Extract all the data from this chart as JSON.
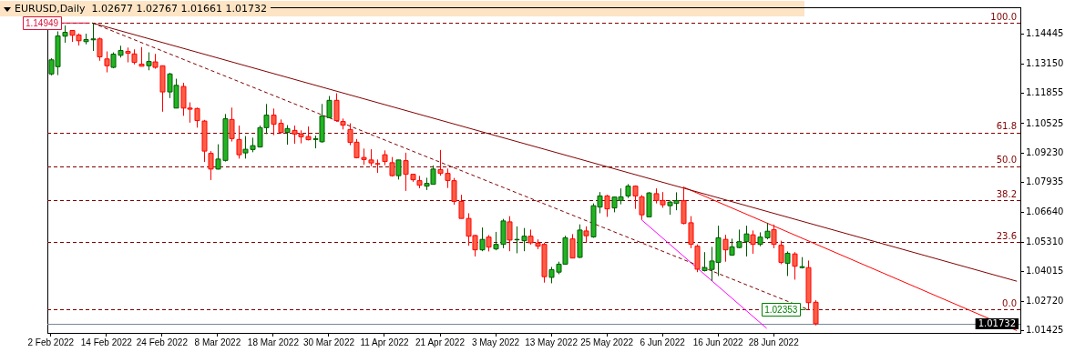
{
  "chart_data": {
    "type": "candlestick",
    "title": "EURUSD,Daily  1.02677 1.02767 1.01661 1.01732",
    "categories": [
      "2 Feb 2022",
      null,
      null,
      null,
      null,
      null,
      null,
      null,
      "14 Feb 2022",
      null,
      null,
      null,
      null,
      null,
      null,
      null,
      "24 Feb 2022",
      null,
      null,
      null,
      null,
      null,
      null,
      null,
      "8 Mar 2022",
      null,
      null,
      null,
      null,
      null,
      null,
      null,
      "18 Mar 2022",
      null,
      null,
      null,
      null,
      null,
      null,
      null,
      "30 Mar 2022",
      null,
      null,
      null,
      null,
      null,
      null,
      null,
      "11 Apr 2022",
      null,
      null,
      null,
      null,
      null,
      null,
      null,
      "21 Apr 2022",
      null,
      null,
      null,
      null,
      null,
      null,
      null,
      "3 May 2022",
      null,
      null,
      null,
      null,
      null,
      null,
      null,
      "13 May 2022",
      null,
      null,
      null,
      null,
      null,
      null,
      null,
      "25 May 2022",
      null,
      null,
      null,
      null,
      null,
      null,
      null,
      "6 Jun 2022",
      null,
      null,
      null,
      null,
      null,
      null,
      null,
      "16 Jun 2022",
      null,
      null,
      null,
      null,
      null,
      null,
      null,
      "28 Jun 2022",
      null,
      null,
      null,
      null,
      null,
      null,
      null,
      null,
      null,
      null,
      null,
      null,
      null,
      null,
      null,
      null,
      null,
      null,
      null,
      null,
      null,
      null,
      null,
      null,
      null,
      null,
      null,
      null,
      null,
      null,
      null,
      null,
      null,
      null,
      null
    ],
    "ohlc": [
      [
        1.1271,
        1.134,
        1.1265,
        1.1333
      ],
      [
        1.1303,
        1.1458,
        1.1266,
        1.1438
      ],
      [
        1.1437,
        1.1484,
        1.1408,
        1.1454
      ],
      [
        1.1462,
        1.1464,
        1.1412,
        1.1441
      ],
      [
        1.1442,
        1.1449,
        1.1396,
        1.1417
      ],
      [
        1.1413,
        1.1448,
        1.1401,
        1.1422
      ],
      [
        1.1421,
        1.14949,
        1.1372,
        1.1425
      ],
      [
        1.1425,
        1.1431,
        1.1329,
        1.1346
      ],
      [
        1.1337,
        1.137,
        1.1278,
        1.1307
      ],
      [
        1.13,
        1.1366,
        1.1296,
        1.1358
      ],
      [
        1.1353,
        1.1395,
        1.1343,
        1.1374
      ],
      [
        1.137,
        1.1387,
        1.1322,
        1.1362
      ],
      [
        1.1359,
        1.1379,
        1.1313,
        1.1322
      ],
      [
        1.1314,
        1.1389,
        1.1304,
        1.1305
      ],
      [
        1.1307,
        1.1366,
        1.1287,
        1.1326
      ],
      [
        1.1324,
        1.1359,
        1.1294,
        1.13
      ],
      [
        1.1307,
        1.1307,
        1.1105,
        1.1192
      ],
      [
        1.1192,
        1.1276,
        1.1165,
        1.1271
      ],
      [
        1.1121,
        1.125,
        1.1121,
        1.1221
      ],
      [
        1.1216,
        1.1232,
        1.1087,
        1.1121
      ],
      [
        1.1121,
        1.1146,
        1.1057,
        1.1116
      ],
      [
        1.1119,
        1.1123,
        1.1035,
        1.1066
      ],
      [
        1.1064,
        1.1069,
        1.0884,
        1.0932
      ],
      [
        1.0922,
        1.0932,
        1.0805,
        1.0853
      ],
      [
        1.0853,
        1.0962,
        1.0851,
        1.0897
      ],
      [
        1.0891,
        1.1095,
        1.0886,
        1.1074
      ],
      [
        1.1071,
        1.1123,
        1.0974,
        1.0987
      ],
      [
        1.0983,
        1.1044,
        1.0899,
        1.0916
      ],
      [
        1.0924,
        1.0998,
        1.0899,
        1.094
      ],
      [
        1.0939,
        1.0991,
        1.0927,
        1.0956
      ],
      [
        1.095,
        1.1044,
        1.0948,
        1.1035
      ],
      [
        1.1035,
        1.1139,
        1.1007,
        1.109
      ],
      [
        1.109,
        1.1119,
        1.1002,
        1.105
      ],
      [
        1.1054,
        1.1071,
        1.101,
        1.1014
      ],
      [
        1.1014,
        1.1046,
        1.096,
        1.1031
      ],
      [
        1.1023,
        1.1044,
        1.0964,
        1.1007
      ],
      [
        1.1007,
        1.1023,
        1.0966,
        1.0995
      ],
      [
        1.0996,
        1.104,
        1.0979,
        1.0982
      ],
      [
        1.0983,
        1.1,
        1.0944,
        1.0986
      ],
      [
        1.0973,
        1.1139,
        1.0969,
        1.1086
      ],
      [
        1.1079,
        1.1174,
        1.1077,
        1.1155
      ],
      [
        1.1155,
        1.1186,
        1.1061,
        1.1066
      ],
      [
        1.1062,
        1.1075,
        1.1027,
        1.1046
      ],
      [
        1.1027,
        1.1054,
        1.0958,
        1.097
      ],
      [
        1.0971,
        1.0985,
        1.09,
        1.0903
      ],
      [
        1.0904,
        1.0943,
        1.0872,
        1.0895
      ],
      [
        1.0893,
        1.094,
        1.0866,
        1.088
      ],
      [
        1.0877,
        1.0895,
        1.0836,
        1.0876
      ],
      [
        1.0916,
        1.0935,
        1.087,
        1.0886
      ],
      [
        1.0881,
        1.0906,
        1.082,
        1.0824
      ],
      [
        1.0824,
        1.0893,
        1.0807,
        1.0893
      ],
      [
        1.089,
        1.0925,
        1.0757,
        1.083
      ],
      [
        1.083,
        1.0832,
        1.0797,
        1.0806
      ],
      [
        1.0802,
        1.0823,
        1.0769,
        1.0782
      ],
      [
        1.0778,
        1.0815,
        1.0761,
        1.079
      ],
      [
        1.0786,
        1.0869,
        1.0786,
        1.0853
      ],
      [
        1.0851,
        1.0937,
        1.0824,
        1.0834
      ],
      [
        1.0834,
        1.0855,
        1.077,
        1.0803
      ],
      [
        1.0802,
        1.0814,
        1.0696,
        1.0711
      ],
      [
        1.0711,
        1.074,
        1.0636,
        1.0636
      ],
      [
        1.0636,
        1.0659,
        1.0516,
        1.0558
      ],
      [
        1.0561,
        1.0564,
        1.0469,
        1.0498
      ],
      [
        1.0498,
        1.0596,
        1.0492,
        1.0544
      ],
      [
        1.0554,
        1.0563,
        1.0491,
        1.051
      ],
      [
        1.0502,
        1.0577,
        1.0496,
        1.0522
      ],
      [
        1.0522,
        1.0634,
        1.0505,
        1.0625
      ],
      [
        1.0621,
        1.0646,
        1.0492,
        1.0541
      ],
      [
        1.0542,
        1.0601,
        1.0483,
        1.0544
      ],
      [
        1.0538,
        1.0594,
        1.0492,
        1.0558
      ],
      [
        1.0558,
        1.0587,
        1.0521,
        1.0529
      ],
      [
        1.0528,
        1.0544,
        1.0501,
        1.0514
      ],
      [
        1.0522,
        1.0529,
        1.0354,
        1.038
      ],
      [
        1.0377,
        1.0423,
        1.0351,
        1.0411
      ],
      [
        1.04,
        1.0446,
        1.0391,
        1.0435
      ],
      [
        1.0435,
        1.056,
        1.0433,
        1.0551
      ],
      [
        1.0546,
        1.0567,
        1.0462,
        1.0462
      ],
      [
        1.0465,
        1.061,
        1.0462,
        1.0585
      ],
      [
        1.0581,
        1.0601,
        1.0531,
        1.056
      ],
      [
        1.0555,
        1.0702,
        1.0551,
        1.0692
      ],
      [
        1.0686,
        1.0752,
        1.0659,
        1.0735
      ],
      [
        1.0735,
        1.074,
        1.0643,
        1.0678
      ],
      [
        1.0682,
        1.0732,
        1.0663,
        1.073
      ],
      [
        1.0715,
        1.0768,
        1.0698,
        1.0731
      ],
      [
        1.0735,
        1.0787,
        1.0726,
        1.0778
      ],
      [
        1.0778,
        1.0781,
        1.0678,
        1.0735
      ],
      [
        1.0731,
        1.0739,
        1.063,
        1.0652
      ],
      [
        1.0643,
        1.0752,
        1.0643,
        1.0748
      ],
      [
        1.0745,
        1.0768,
        1.0702,
        1.0715
      ],
      [
        1.0715,
        1.0752,
        1.0683,
        1.0696
      ],
      [
        1.0692,
        1.0715,
        1.0652,
        1.0708
      ],
      [
        1.0702,
        1.0751,
        1.0672,
        1.0714
      ],
      [
        1.0714,
        1.0774,
        1.061,
        1.0614
      ],
      [
        1.0617,
        1.0646,
        1.0505,
        1.0522
      ],
      [
        1.0514,
        1.0522,
        1.04,
        1.0413
      ],
      [
        1.0407,
        1.0488,
        1.0403,
        1.042
      ],
      [
        1.0412,
        1.0511,
        1.0361,
        1.0449
      ],
      [
        1.0443,
        1.0604,
        1.0383,
        1.0551
      ],
      [
        1.0544,
        1.0564,
        1.0446,
        1.0498
      ],
      [
        1.0475,
        1.0547,
        1.0472,
        1.0511
      ],
      [
        1.0508,
        1.0587,
        1.0505,
        1.0534
      ],
      [
        1.0534,
        1.0604,
        1.0469,
        1.0568
      ],
      [
        1.0564,
        1.0583,
        1.0481,
        1.0522
      ],
      [
        1.0522,
        1.0575,
        1.0514,
        1.0554
      ],
      [
        1.0551,
        1.0617,
        1.0544,
        1.058
      ],
      [
        1.0587,
        1.0609,
        1.0505,
        1.0522
      ],
      [
        1.0518,
        1.0538,
        1.0435,
        1.0443
      ],
      [
        1.0439,
        1.0491,
        1.0383,
        1.0483
      ],
      [
        1.048,
        1.0488,
        1.0367,
        1.0426
      ],
      [
        1.042,
        1.0466,
        1.0416,
        1.0424
      ],
      [
        1.042,
        1.0451,
        1.02353,
        1.0266
      ],
      [
        1.02677,
        1.02767,
        1.01661,
        1.01732
      ],
      null,
      null,
      null,
      null,
      null,
      null,
      null,
      null,
      null,
      null,
      null,
      null,
      null,
      null,
      null,
      null,
      null,
      null,
      null,
      null,
      null,
      null,
      null,
      null,
      null,
      null,
      null,
      null,
      null
    ],
    "series": [
      {
        "type": "line",
        "color": "#800000",
        "values": [
          null,
          null,
          null,
          null,
          null,
          null,
          1.14949,
          null,
          null,
          null,
          null,
          null,
          null,
          null,
          null,
          null,
          null,
          null,
          null,
          null,
          null,
          null,
          null,
          null,
          null,
          null,
          null,
          null,
          null,
          null,
          null,
          null,
          null,
          null,
          null,
          null,
          null,
          null,
          null,
          null,
          null,
          null,
          null,
          null,
          null,
          null,
          null,
          null,
          null,
          null,
          null,
          null,
          null,
          null,
          null,
          null,
          null,
          null,
          null,
          null,
          null,
          null,
          null,
          null,
          null,
          null,
          null,
          null,
          null,
          null,
          null,
          null,
          null,
          null,
          null,
          null,
          null,
          null,
          null,
          null,
          null,
          null,
          null,
          null,
          null,
          null,
          null,
          null,
          null,
          null,
          null,
          null,
          null,
          null,
          null,
          null,
          null,
          null,
          null,
          null,
          null,
          null,
          null,
          null,
          null,
          null,
          null,
          null,
          null,
          null,
          null,
          null,
          null,
          null,
          null,
          null,
          null,
          null,
          null,
          null,
          null,
          null,
          null,
          null,
          null,
          null,
          null,
          null,
          null,
          null,
          null,
          null,
          null,
          null,
          null,
          null,
          null,
          null,
          null,
          1.036
        ]
      },
      {
        "type": "line",
        "color": "#800000",
        "line_style": "dashed",
        "values": [
          null,
          null,
          null,
          null,
          null,
          null,
          1.14949,
          null,
          null,
          null,
          null,
          null,
          null,
          null,
          null,
          null,
          null,
          null,
          null,
          null,
          null,
          null,
          null,
          null,
          null,
          null,
          null,
          null,
          null,
          null,
          null,
          null,
          null,
          null,
          null,
          null,
          null,
          null,
          null,
          null,
          null,
          null,
          null,
          null,
          null,
          null,
          null,
          null,
          null,
          null,
          null,
          null,
          null,
          null,
          null,
          null,
          null,
          null,
          null,
          null,
          null,
          null,
          null,
          null,
          null,
          null,
          null,
          null,
          null,
          null,
          null,
          null,
          null,
          null,
          null,
          null,
          null,
          null,
          null,
          null,
          null,
          null,
          null,
          null,
          null,
          null,
          null,
          null,
          null,
          null,
          null,
          null,
          null,
          null,
          null,
          null,
          null,
          null,
          null,
          null,
          null,
          null,
          null,
          null,
          null,
          null,
          null,
          null,
          null,
          1.02353,
          null,
          null,
          null,
          null,
          null,
          null,
          null,
          null,
          null,
          null,
          null,
          null,
          null,
          null,
          null,
          null,
          null,
          null,
          null,
          null,
          null,
          null,
          null,
          null,
          null,
          null,
          null,
          null,
          null,
          null
        ]
      },
      {
        "type": "line",
        "color": "#ff0000",
        "values": [
          null,
          null,
          null,
          null,
          null,
          null,
          null,
          null,
          null,
          null,
          null,
          null,
          null,
          null,
          null,
          null,
          null,
          null,
          null,
          null,
          null,
          null,
          null,
          null,
          null,
          null,
          null,
          null,
          null,
          null,
          null,
          null,
          null,
          null,
          null,
          null,
          null,
          null,
          null,
          null,
          null,
          null,
          null,
          null,
          null,
          null,
          null,
          null,
          null,
          null,
          null,
          null,
          null,
          null,
          null,
          null,
          null,
          null,
          null,
          null,
          null,
          null,
          null,
          null,
          null,
          null,
          null,
          null,
          null,
          null,
          null,
          null,
          null,
          null,
          null,
          null,
          null,
          null,
          null,
          null,
          null,
          null,
          null,
          null,
          null,
          null,
          null,
          null,
          null,
          null,
          null,
          1.0774,
          null,
          null,
          null,
          null,
          null,
          null,
          null,
          null,
          null,
          null,
          null,
          null,
          null,
          null,
          null,
          null,
          null,
          null,
          null,
          null,
          null,
          null,
          null,
          null,
          null,
          null,
          null,
          null,
          null,
          null,
          null,
          null,
          null,
          null,
          null,
          null,
          null,
          null,
          null,
          null,
          null,
          null,
          null,
          null,
          null,
          null,
          null,
          1.0143
        ]
      },
      {
        "type": "line",
        "color": "#ff00ff",
        "values": [
          null,
          null,
          null,
          null,
          null,
          null,
          null,
          null,
          null,
          null,
          null,
          null,
          null,
          null,
          null,
          null,
          null,
          null,
          null,
          null,
          null,
          null,
          null,
          null,
          null,
          null,
          null,
          null,
          null,
          null,
          null,
          null,
          null,
          null,
          null,
          null,
          null,
          null,
          null,
          null,
          null,
          null,
          null,
          null,
          null,
          null,
          null,
          null,
          null,
          null,
          null,
          null,
          null,
          null,
          null,
          null,
          null,
          null,
          null,
          null,
          null,
          null,
          null,
          null,
          null,
          null,
          null,
          null,
          null,
          null,
          null,
          null,
          null,
          null,
          null,
          null,
          null,
          null,
          null,
          null,
          null,
          null,
          null,
          null,
          null,
          1.063,
          null,
          null,
          null,
          null,
          null,
          null,
          null,
          null,
          null,
          null,
          null,
          null,
          null,
          null,
          null,
          null,
          null,
          1.0153,
          null,
          null,
          null,
          null,
          null,
          null,
          null,
          null,
          null,
          null,
          null,
          null,
          null,
          null,
          null,
          null,
          null,
          null,
          null,
          null,
          null,
          null,
          null,
          null,
          null,
          null,
          null,
          null,
          null,
          null,
          null,
          null,
          null,
          null,
          null,
          null
        ]
      }
    ],
    "ylim": [
      1.0133,
      1.1564
    ],
    "yticks": [
      {
        "value": 1.01425,
        "label": "1.01425"
      },
      {
        "value": 1.0272,
        "label": "1.02720"
      },
      {
        "value": 1.04015,
        "label": "1.04015"
      },
      {
        "value": 1.0531,
        "label": "1.05310"
      },
      {
        "value": 1.0664,
        "label": "1.06640"
      },
      {
        "value": 1.07935,
        "label": "1.07935"
      },
      {
        "value": 1.0923,
        "label": "1.09230"
      },
      {
        "value": 1.10525,
        "label": "1.10525"
      },
      {
        "value": 1.11855,
        "label": "1.11855"
      },
      {
        "value": 1.1315,
        "label": "1.13150"
      },
      {
        "value": 1.14445,
        "label": "1.14445"
      }
    ],
    "ref_lines": [
      {
        "axis": "y",
        "value": 1.14949,
        "label": "1.14949",
        "color": "#800000",
        "line_style": "dashed"
      },
      {
        "axis": "y",
        "value": 1.10137,
        "color": "#800000",
        "line_style": "dashed"
      },
      {
        "axis": "y",
        "value": 1.08651,
        "color": "#800000",
        "line_style": "dashed"
      },
      {
        "axis": "y",
        "value": 1.07165,
        "color": "#800000",
        "line_style": "dashed"
      },
      {
        "axis": "y",
        "value": 1.05326,
        "color": "#800000",
        "line_style": "dashed"
      },
      {
        "axis": "y",
        "value": 1.02353,
        "label": "1.02353",
        "color": "#800000",
        "line_style": "dashed"
      },
      {
        "axis": "y",
        "value": 1.01732,
        "label": "1.01732",
        "color": "#778899",
        "line_style": "solid"
      }
    ],
    "annotations": [
      {
        "text": "100.0",
        "y": 1.14949
      },
      {
        "text": "61.8",
        "y": 1.10137
      },
      {
        "text": "50.0",
        "y": 1.08651
      },
      {
        "text": "38.2",
        "y": 1.07165
      },
      {
        "text": "23.6",
        "y": 1.05326
      },
      {
        "text": "0.0",
        "y": 1.02353
      }
    ]
  }
}
